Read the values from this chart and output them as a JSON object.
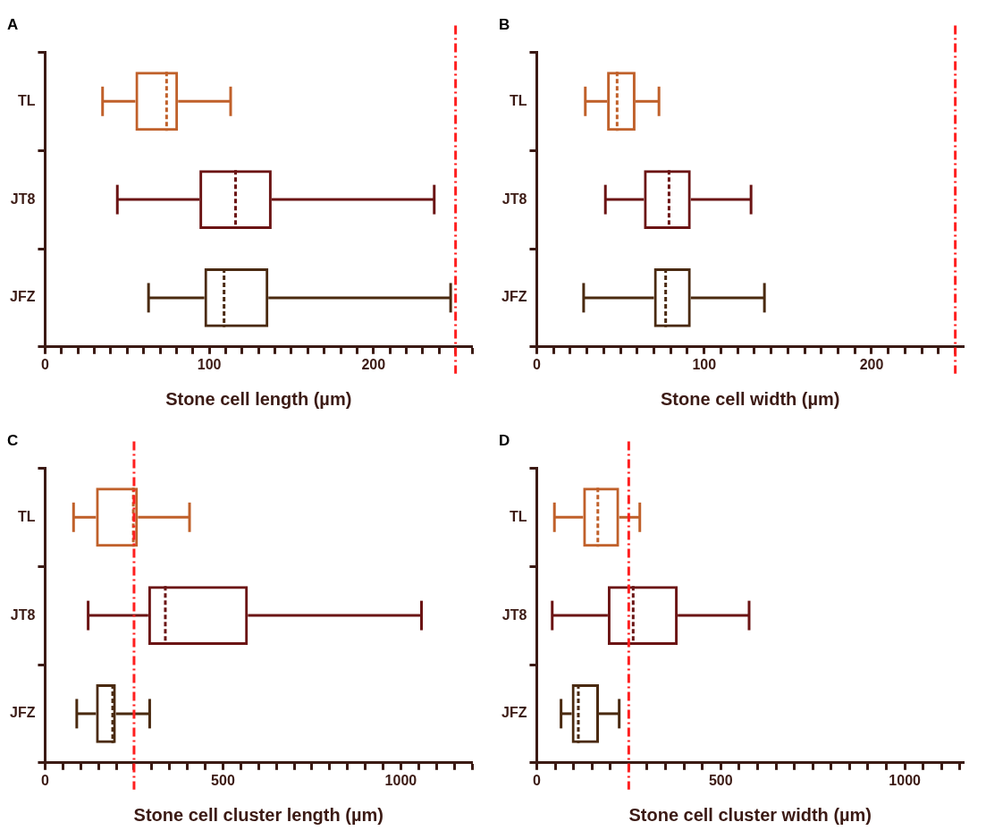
{
  "chart_data": [
    {
      "type": "box",
      "title": "A",
      "xlabel": "Stone cell length (µm)",
      "orientation": "horizontal",
      "categories": [
        "TL",
        "JT8",
        "JFZ"
      ],
      "grid": false,
      "xlim": [
        0,
        260
      ],
      "xticks": [
        0,
        {
          "value": 10,
          "label": null
        },
        {
          "value": 20,
          "label": null
        },
        {
          "value": 30,
          "label": null
        },
        {
          "value": 40,
          "label": null
        },
        {
          "value": 50,
          "label": null
        },
        {
          "value": 60,
          "label": null
        },
        {
          "value": 70,
          "label": null
        },
        {
          "value": 80,
          "label": null
        },
        {
          "value": 90,
          "label": null
        },
        100,
        {
          "value": 110,
          "label": null
        },
        {
          "value": 120,
          "label": null
        },
        {
          "value": 130,
          "label": null
        },
        {
          "value": 140,
          "label": null
        },
        {
          "value": 150,
          "label": null
        },
        {
          "value": 160,
          "label": null
        },
        {
          "value": 170,
          "label": null
        },
        {
          "value": 180,
          "label": null
        },
        {
          "value": 190,
          "label": null
        },
        200,
        {
          "value": 210,
          "label": null
        },
        {
          "value": 220,
          "label": null
        },
        {
          "value": 230,
          "label": null
        },
        {
          "value": 240,
          "label": null
        },
        {
          "value": 250,
          "label": null
        },
        {
          "value": 260,
          "label": null
        }
      ],
      "colors": [
        "#c0602a",
        "#6b1414",
        "#4a2a10"
      ],
      "boxes": [
        {
          "low": 35,
          "q1": 55,
          "median": 74,
          "q3": 81,
          "high": 113
        },
        {
          "low": 44,
          "q1": 94,
          "median": 116,
          "q3": 138,
          "high": 237
        },
        {
          "low": 63,
          "q1": 97,
          "median": 109,
          "q3": 136,
          "high": 247
        }
      ],
      "ref_lines": [
        {
          "axis": "x",
          "value": 250,
          "label": null,
          "color": "#ff1f1f",
          "line_style": "dashed"
        }
      ]
    },
    {
      "type": "box",
      "title": "B",
      "xlabel": "Stone cell width (µm)",
      "orientation": "horizontal",
      "categories": [
        "TL",
        "JT8",
        "JFZ"
      ],
      "grid": false,
      "xlim": [
        0,
        255
      ],
      "xticks": [
        0,
        {
          "value": 10,
          "label": null
        },
        {
          "value": 20,
          "label": null
        },
        {
          "value": 30,
          "label": null
        },
        {
          "value": 40,
          "label": null
        },
        {
          "value": 50,
          "label": null
        },
        {
          "value": 60,
          "label": null
        },
        {
          "value": 70,
          "label": null
        },
        {
          "value": 80,
          "label": null
        },
        {
          "value": 90,
          "label": null
        },
        100,
        {
          "value": 110,
          "label": null
        },
        {
          "value": 120,
          "label": null
        },
        {
          "value": 130,
          "label": null
        },
        {
          "value": 140,
          "label": null
        },
        {
          "value": 150,
          "label": null
        },
        {
          "value": 160,
          "label": null
        },
        {
          "value": 170,
          "label": null
        },
        {
          "value": 180,
          "label": null
        },
        {
          "value": 190,
          "label": null
        },
        200,
        {
          "value": 210,
          "label": null
        },
        {
          "value": 220,
          "label": null
        },
        {
          "value": 230,
          "label": null
        },
        {
          "value": 240,
          "label": null
        },
        {
          "value": 250,
          "label": null
        }
      ],
      "colors": [
        "#c0602a",
        "#6b1414",
        "#4a2a10"
      ],
      "boxes": [
        {
          "low": 29,
          "q1": 42,
          "median": 48,
          "q3": 59,
          "high": 73
        },
        {
          "low": 41,
          "q1": 64,
          "median": 79,
          "q3": 92,
          "high": 128
        },
        {
          "low": 28,
          "q1": 70,
          "median": 77,
          "q3": 92,
          "high": 136
        }
      ],
      "ref_lines": [
        {
          "axis": "x",
          "value": 250,
          "label": null,
          "color": "#ff1f1f",
          "line_style": "dashed"
        }
      ]
    },
    {
      "type": "box",
      "title": "C",
      "xlabel": "Stone cell cluster length (µm)",
      "orientation": "horizontal",
      "categories": [
        "TL",
        "JT8",
        "JFZ"
      ],
      "grid": false,
      "xlim": [
        0,
        1200
      ],
      "xticks": [
        0,
        {
          "value": 50,
          "label": null
        },
        {
          "value": 100,
          "label": null
        },
        {
          "value": 150,
          "label": null
        },
        {
          "value": 200,
          "label": null
        },
        {
          "value": 250,
          "label": null
        },
        {
          "value": 300,
          "label": null
        },
        {
          "value": 350,
          "label": null
        },
        {
          "value": 400,
          "label": null
        },
        {
          "value": 450,
          "label": null
        },
        500,
        {
          "value": 550,
          "label": null
        },
        {
          "value": 600,
          "label": null
        },
        {
          "value": 650,
          "label": null
        },
        {
          "value": 700,
          "label": null
        },
        {
          "value": 750,
          "label": null
        },
        {
          "value": 800,
          "label": null
        },
        {
          "value": 850,
          "label": null
        },
        {
          "value": 900,
          "label": null
        },
        {
          "value": 950,
          "label": null
        },
        1000,
        {
          "value": 1050,
          "label": null
        },
        {
          "value": 1100,
          "label": null
        },
        {
          "value": 1150,
          "label": null
        },
        {
          "value": 1200,
          "label": null
        }
      ],
      "colors": [
        "#c0602a",
        "#6b1414",
        "#4a2a10"
      ],
      "boxes": [
        {
          "low": 80,
          "q1": 143,
          "median": 248,
          "q3": 261,
          "high": 406
        },
        {
          "low": 121,
          "q1": 290,
          "median": 338,
          "q3": 570,
          "high": 1058
        },
        {
          "low": 89,
          "q1": 143,
          "median": 190,
          "q3": 199,
          "high": 294
        }
      ],
      "ref_lines": [
        {
          "axis": "x",
          "value": 250,
          "label": null,
          "color": "#ff1f1f",
          "line_style": "dashed"
        }
      ]
    },
    {
      "type": "box",
      "title": "D",
      "xlabel": "Stone cell cluster width (µm)",
      "orientation": "horizontal",
      "categories": [
        "TL",
        "JT8",
        "JFZ"
      ],
      "grid": false,
      "xlim": [
        0,
        1160
      ],
      "xticks": [
        0,
        {
          "value": 50,
          "label": null
        },
        {
          "value": 100,
          "label": null
        },
        {
          "value": 150,
          "label": null
        },
        {
          "value": 200,
          "label": null
        },
        {
          "value": 250,
          "label": null
        },
        {
          "value": 300,
          "label": null
        },
        {
          "value": 350,
          "label": null
        },
        {
          "value": 400,
          "label": null
        },
        {
          "value": 450,
          "label": null
        },
        500,
        {
          "value": 550,
          "label": null
        },
        {
          "value": 600,
          "label": null
        },
        {
          "value": 650,
          "label": null
        },
        {
          "value": 700,
          "label": null
        },
        {
          "value": 750,
          "label": null
        },
        {
          "value": 800,
          "label": null
        },
        {
          "value": 850,
          "label": null
        },
        {
          "value": 900,
          "label": null
        },
        {
          "value": 950,
          "label": null
        },
        1000,
        {
          "value": 1050,
          "label": null
        },
        {
          "value": 1100,
          "label": null
        },
        {
          "value": 1150,
          "label": null
        }
      ],
      "colors": [
        "#c0602a",
        "#6b1414",
        "#4a2a10"
      ],
      "boxes": [
        {
          "low": 48,
          "q1": 126,
          "median": 166,
          "q3": 224,
          "high": 280
        },
        {
          "low": 42,
          "q1": 193,
          "median": 262,
          "q3": 383,
          "high": 577
        },
        {
          "low": 66,
          "q1": 95,
          "median": 113,
          "q3": 169,
          "high": 224
        }
      ],
      "ref_lines": [
        {
          "axis": "x",
          "value": 250,
          "label": null,
          "color": "#ff1f1f",
          "line_style": "dashed"
        }
      ]
    }
  ]
}
